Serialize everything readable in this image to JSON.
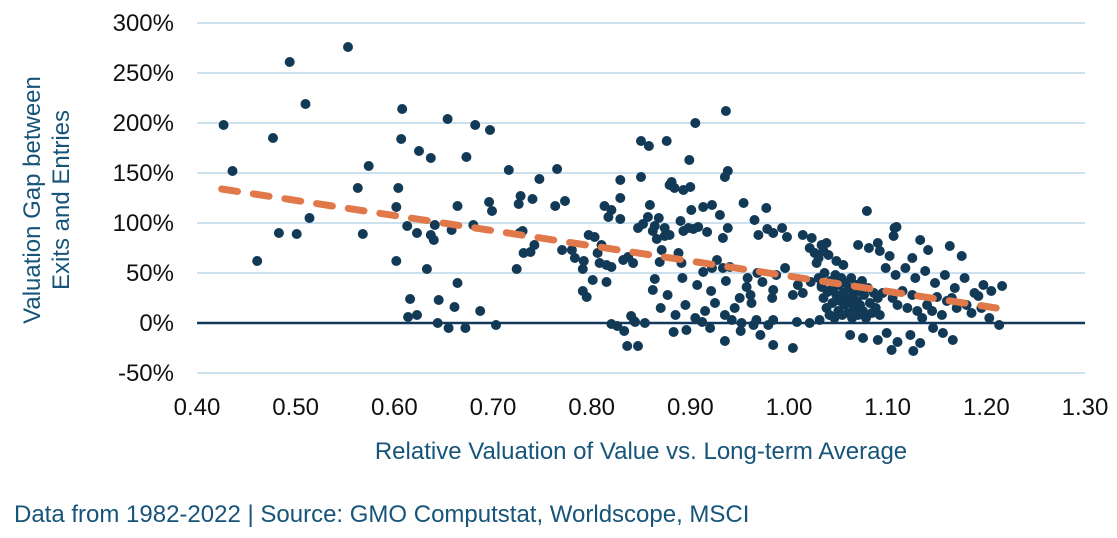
{
  "figure": {
    "footer": "Data from 1982-2022 | Source: GMO Computstat, Worldscope, MSCI",
    "background": "#ffffff"
  },
  "chart_data": {
    "type": "scatter",
    "title": "",
    "xlabel": "Relative Valuation of Value vs. Long-term Average",
    "ylabel": "Valuation Gap between Exits and Entries",
    "ylabel_lines": [
      "Valuation Gap between",
      "Exits and Entries"
    ],
    "xlim": [
      0.4,
      1.3
    ],
    "ylim_pct": [
      -50,
      300
    ],
    "grid": "horizontal",
    "legend": "none",
    "zero_line": true,
    "x_ticks": [
      0.4,
      0.5,
      0.6,
      0.7,
      0.8,
      0.9,
      1.0,
      1.1,
      1.2,
      1.3
    ],
    "x_tick_labels": [
      "0.40",
      "0.50",
      "0.60",
      "0.70",
      "0.80",
      "0.90",
      "1.00",
      "1.10",
      "1.20",
      "1.30"
    ],
    "y_ticks_pct": [
      300,
      250,
      200,
      150,
      100,
      50,
      0,
      -50
    ],
    "y_tick_labels": [
      "300%",
      "250%",
      "200%",
      "150%",
      "100%",
      "50%",
      "0%",
      "-50%"
    ],
    "colors": {
      "points": "#123a56",
      "trend": "#e07849",
      "gridline": "#cce0ed",
      "zero_line": "#12395c",
      "axis_title": "#17547a",
      "tick_label": "#111111"
    },
    "trend_line": {
      "style": "dashed",
      "x_start": 0.425,
      "y_start_pct": 134,
      "x_end": 1.21,
      "y_end_pct": 15
    },
    "points": [
      [
        0.553,
        276
      ],
      [
        0.494,
        261
      ],
      [
        0.51,
        219
      ],
      [
        0.608,
        214
      ],
      [
        0.427,
        198
      ],
      [
        0.477,
        185
      ],
      [
        0.607,
        184
      ],
      [
        0.625,
        172
      ],
      [
        0.574,
        157
      ],
      [
        0.436,
        152
      ],
      [
        0.563,
        135
      ],
      [
        0.604,
        135
      ],
      [
        0.602,
        116
      ],
      [
        0.514,
        105
      ],
      [
        0.613,
        97
      ],
      [
        0.623,
        90
      ],
      [
        0.483,
        90
      ],
      [
        0.501,
        89
      ],
      [
        0.568,
        89
      ],
      [
        0.461,
        62
      ],
      [
        0.602,
        62
      ],
      [
        0.616,
        24
      ],
      [
        0.614,
        6
      ],
      [
        0.623,
        8
      ],
      [
        0.654,
        204
      ],
      [
        0.682,
        198
      ],
      [
        0.697,
        193
      ],
      [
        0.637,
        165
      ],
      [
        0.673,
        166
      ],
      [
        0.716,
        153
      ],
      [
        0.765,
        154
      ],
      [
        0.747,
        144
      ],
      [
        0.829,
        143
      ],
      [
        0.85,
        146
      ],
      [
        0.728,
        127
      ],
      [
        0.74,
        124
      ],
      [
        0.726,
        119
      ],
      [
        0.829,
        125
      ],
      [
        0.763,
        117
      ],
      [
        0.773,
        122
      ],
      [
        0.664,
        117
      ],
      [
        0.696,
        121
      ],
      [
        0.699,
        112
      ],
      [
        0.82,
        113
      ],
      [
        0.829,
        104
      ],
      [
        0.813,
        117
      ],
      [
        0.817,
        106
      ],
      [
        0.641,
        98
      ],
      [
        0.658,
        93
      ],
      [
        0.68,
        98
      ],
      [
        0.637,
        88
      ],
      [
        0.64,
        83
      ],
      [
        0.727,
        90
      ],
      [
        0.73,
        92
      ],
      [
        0.742,
        78
      ],
      [
        0.738,
        71
      ],
      [
        0.731,
        70
      ],
      [
        0.77,
        73
      ],
      [
        0.78,
        73
      ],
      [
        0.783,
        65
      ],
      [
        0.792,
        62
      ],
      [
        0.797,
        88
      ],
      [
        0.803,
        86
      ],
      [
        0.81,
        78
      ],
      [
        0.806,
        70
      ],
      [
        0.808,
        60
      ],
      [
        0.815,
        58
      ],
      [
        0.82,
        56
      ],
      [
        0.791,
        54
      ],
      [
        0.724,
        54
      ],
      [
        0.633,
        54
      ],
      [
        0.664,
        40
      ],
      [
        0.801,
        43
      ],
      [
        0.815,
        41
      ],
      [
        0.791,
        32
      ],
      [
        0.795,
        26
      ],
      [
        0.645,
        23
      ],
      [
        0.661,
        16
      ],
      [
        0.687,
        12
      ],
      [
        0.644,
        0
      ],
      [
        0.655,
        -5
      ],
      [
        0.672,
        -5
      ],
      [
        0.703,
        -2
      ],
      [
        0.82,
        -1
      ],
      [
        0.826,
        -3
      ],
      [
        0.833,
        -8
      ],
      [
        0.836,
        -23
      ],
      [
        0.847,
        -23
      ],
      [
        0.84,
        7
      ],
      [
        0.843,
        2
      ],
      [
        0.832,
        63
      ],
      [
        0.837,
        66
      ],
      [
        0.842,
        60
      ],
      [
        0.936,
        212
      ],
      [
        0.905,
        200
      ],
      [
        0.876,
        182
      ],
      [
        0.85,
        182
      ],
      [
        0.858,
        177
      ],
      [
        0.899,
        163
      ],
      [
        0.938,
        152
      ],
      [
        0.935,
        146
      ],
      [
        0.881,
        141
      ],
      [
        0.884,
        135
      ],
      [
        0.893,
        133
      ],
      [
        0.9,
        136
      ],
      [
        0.879,
        138
      ],
      [
        0.859,
        118
      ],
      [
        0.901,
        113
      ],
      [
        0.913,
        116
      ],
      [
        0.922,
        118
      ],
      [
        0.954,
        120
      ],
      [
        0.977,
        115
      ],
      [
        1.079,
        112
      ],
      [
        0.868,
        105
      ],
      [
        0.89,
        102
      ],
      [
        0.93,
        108
      ],
      [
        0.965,
        103
      ],
      [
        0.852,
        99
      ],
      [
        0.857,
        106
      ],
      [
        0.869,
        61
      ],
      [
        0.864,
        44
      ],
      [
        0.847,
        95
      ],
      [
        0.864,
        97
      ],
      [
        0.874,
        95
      ],
      [
        0.879,
        88
      ],
      [
        0.893,
        92
      ],
      [
        0.898,
        95
      ],
      [
        0.903,
        94
      ],
      [
        0.908,
        96
      ],
      [
        0.917,
        91
      ],
      [
        0.933,
        85
      ],
      [
        0.938,
        95
      ],
      [
        0.969,
        88
      ],
      [
        0.978,
        94
      ],
      [
        0.984,
        90
      ],
      [
        0.993,
        95
      ],
      [
        0.998,
        86
      ],
      [
        1.014,
        88
      ],
      [
        1.023,
        85
      ],
      [
        1.038,
        80
      ],
      [
        0.862,
        92
      ],
      [
        0.866,
        84
      ],
      [
        0.874,
        87
      ],
      [
        0.871,
        73
      ],
      [
        0.888,
        70
      ],
      [
        0.891,
        60
      ],
      [
        0.913,
        51
      ],
      [
        0.922,
        55
      ],
      [
        0.927,
        63
      ],
      [
        0.933,
        55
      ],
      [
        0.94,
        56
      ],
      [
        0.957,
        36
      ],
      [
        0.961,
        28
      ],
      [
        0.962,
        20
      ],
      [
        0.973,
        41
      ],
      [
        0.983,
        25
      ],
      [
        0.984,
        33
      ],
      [
        1.004,
        28
      ],
      [
        1.009,
        38
      ],
      [
        1.014,
        30
      ],
      [
        1.022,
        41
      ],
      [
        1.033,
        36
      ],
      [
        1.039,
        31
      ],
      [
        0.844,
        1
      ],
      [
        0.854,
        0
      ],
      [
        0.883,
        -9
      ],
      [
        0.896,
        -7
      ],
      [
        0.912,
        1
      ],
      [
        0.92,
        -5
      ],
      [
        0.942,
        3
      ],
      [
        0.952,
        0
      ],
      [
        0.964,
        -2
      ],
      [
        0.967,
        3
      ],
      [
        0.979,
        -2
      ],
      [
        0.984,
        3
      ],
      [
        1.008,
        1
      ],
      [
        1.021,
        0
      ],
      [
        1.031,
        3
      ],
      [
        0.87,
        15
      ],
      [
        0.885,
        8
      ],
      [
        0.895,
        18
      ],
      [
        0.905,
        5
      ],
      [
        0.915,
        12
      ],
      [
        0.925,
        20
      ],
      [
        0.935,
        8
      ],
      [
        0.945,
        15
      ],
      [
        0.958,
        45
      ],
      [
        0.968,
        50
      ],
      [
        0.987,
        48
      ],
      [
        0.996,
        55
      ],
      [
        0.984,
        -22
      ],
      [
        1.004,
        -25
      ],
      [
        0.971,
        -12
      ],
      [
        0.951,
        -8
      ],
      [
        0.935,
        -18
      ],
      [
        0.862,
        33
      ],
      [
        0.877,
        28
      ],
      [
        0.892,
        45
      ],
      [
        0.907,
        38
      ],
      [
        0.921,
        32
      ],
      [
        0.936,
        42
      ],
      [
        0.95,
        25
      ],
      [
        1.03,
        45
      ],
      [
        1.033,
        38
      ],
      [
        1.035,
        25
      ],
      [
        1.036,
        50
      ],
      [
        1.038,
        15
      ],
      [
        1.04,
        32
      ],
      [
        1.041,
        8
      ],
      [
        1.042,
        42
      ],
      [
        1.044,
        20
      ],
      [
        1.045,
        35
      ],
      [
        1.046,
        5
      ],
      [
        1.047,
        48
      ],
      [
        1.048,
        28
      ],
      [
        1.05,
        12
      ],
      [
        1.051,
        38
      ],
      [
        1.052,
        22
      ],
      [
        1.053,
        45
      ],
      [
        1.054,
        8
      ],
      [
        1.055,
        30
      ],
      [
        1.056,
        18
      ],
      [
        1.057,
        40
      ],
      [
        1.058,
        25
      ],
      [
        1.06,
        10
      ],
      [
        1.061,
        35
      ],
      [
        1.062,
        20
      ],
      [
        1.063,
        45
      ],
      [
        1.064,
        5
      ],
      [
        1.065,
        28
      ],
      [
        1.066,
        15
      ],
      [
        1.068,
        38
      ],
      [
        1.069,
        22
      ],
      [
        1.07,
        8
      ],
      [
        1.071,
        32
      ],
      [
        1.072,
        18
      ],
      [
        1.074,
        42
      ],
      [
        1.075,
        12
      ],
      [
        1.076,
        28
      ],
      [
        1.078,
        5
      ],
      [
        1.08,
        35
      ],
      [
        1.082,
        20
      ],
      [
        1.084,
        10
      ],
      [
        1.086,
        30
      ],
      [
        1.088,
        15
      ],
      [
        1.09,
        25
      ],
      [
        1.092,
        8
      ],
      [
        1.026,
        70
      ],
      [
        1.03,
        65
      ],
      [
        1.021,
        75
      ],
      [
        1.035,
        72
      ],
      [
        1.04,
        68
      ],
      [
        1.033,
        78
      ],
      [
        1.028,
        60
      ],
      [
        1.048,
        62
      ],
      [
        1.055,
        58
      ],
      [
        1.07,
        78
      ],
      [
        1.081,
        75
      ],
      [
        1.09,
        80
      ],
      [
        1.092,
        72
      ],
      [
        1.102,
        67
      ],
      [
        1.107,
        95
      ],
      [
        1.106,
        87
      ],
      [
        1.109,
        96
      ],
      [
        1.133,
        83
      ],
      [
        1.141,
        73
      ],
      [
        1.163,
        77
      ],
      [
        1.175,
        67
      ],
      [
        1.125,
        65
      ],
      [
        1.11,
        18
      ],
      [
        1.12,
        15
      ],
      [
        1.13,
        12
      ],
      [
        1.14,
        18
      ],
      [
        1.15,
        26
      ],
      [
        1.16,
        22
      ],
      [
        1.17,
        15
      ],
      [
        1.18,
        18
      ],
      [
        1.192,
        27
      ],
      [
        1.205,
        32
      ],
      [
        1.216,
        37
      ],
      [
        1.197,
        38
      ],
      [
        1.098,
        55
      ],
      [
        1.108,
        48
      ],
      [
        1.118,
        55
      ],
      [
        1.128,
        45
      ],
      [
        1.138,
        52
      ],
      [
        1.148,
        40
      ],
      [
        1.158,
        48
      ],
      [
        1.168,
        35
      ],
      [
        1.178,
        45
      ],
      [
        1.188,
        30
      ],
      [
        1.095,
        30
      ],
      [
        1.105,
        25
      ],
      [
        1.115,
        32
      ],
      [
        1.125,
        28
      ],
      [
        1.135,
        5
      ],
      [
        1.145,
        12
      ],
      [
        1.155,
        8
      ],
      [
        1.165,
        25
      ],
      [
        1.185,
        10
      ],
      [
        1.195,
        15
      ],
      [
        1.203,
        5
      ],
      [
        1.213,
        -2
      ],
      [
        1.062,
        -12
      ],
      [
        1.075,
        -15
      ],
      [
        1.09,
        -17
      ],
      [
        1.099,
        -10
      ],
      [
        1.11,
        -19
      ],
      [
        1.123,
        -12
      ],
      [
        1.133,
        -20
      ],
      [
        1.146,
        -5
      ],
      [
        1.156,
        -10
      ],
      [
        1.166,
        -17
      ],
      [
        1.104,
        -27
      ],
      [
        1.126,
        -28
      ]
    ]
  }
}
